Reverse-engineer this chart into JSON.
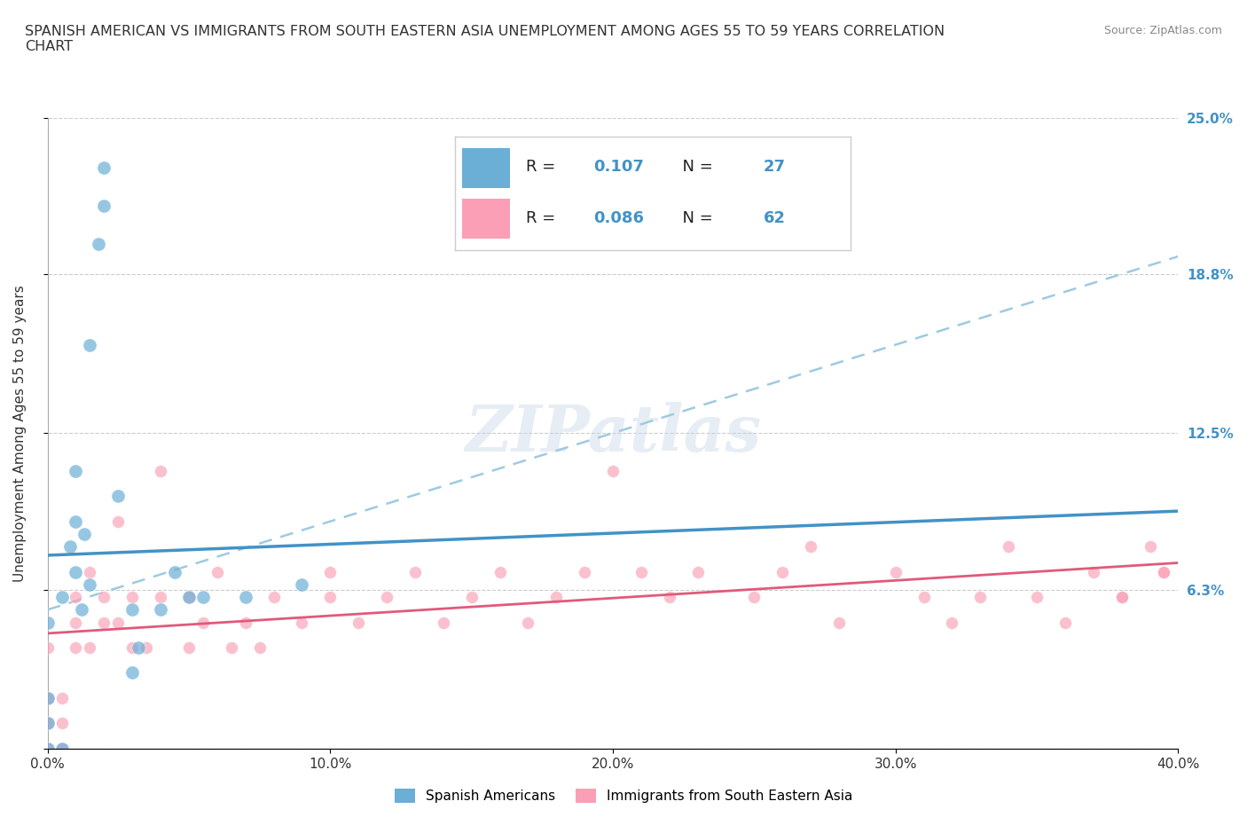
{
  "title": "SPANISH AMERICAN VS IMMIGRANTS FROM SOUTH EASTERN ASIA UNEMPLOYMENT AMONG AGES 55 TO 59 YEARS CORRELATION\nCHART",
  "source": "Source: ZipAtlas.com",
  "ylabel": "Unemployment Among Ages 55 to 59 years",
  "xlabel_ticks": [
    "0.0%",
    "10.0%",
    "20.0%",
    "30.0%",
    "40.0%"
  ],
  "xlabel_vals": [
    0.0,
    0.1,
    0.2,
    0.3,
    0.4
  ],
  "ylabel_ticks": [
    "0.0%",
    "6.3%",
    "12.5%",
    "18.8%",
    "25.0%"
  ],
  "ylabel_vals": [
    0.0,
    0.063,
    0.125,
    0.188,
    0.25
  ],
  "xlim": [
    0.0,
    0.4
  ],
  "ylim": [
    0.0,
    0.25
  ],
  "right_ytick_labels": [
    "25.0%",
    "18.8%",
    "12.5%",
    "6.3%"
  ],
  "right_ytick_vals": [
    0.25,
    0.188,
    0.125,
    0.063
  ],
  "R_blue": 0.107,
  "N_blue": 27,
  "R_pink": 0.086,
  "N_pink": 62,
  "color_blue": "#6baed6",
  "color_pink": "#fa9fb5",
  "color_blue_line": "#4292c6",
  "color_pink_line": "#e05a7a",
  "color_blue_dash": "#9ecae1",
  "watermark": "ZIPatlas",
  "legend_label_blue": "Spanish Americans",
  "legend_label_pink": "Immigrants from South Eastern Asia",
  "blue_scatter_x": [
    0.0,
    0.0,
    0.0,
    0.0,
    0.005,
    0.005,
    0.008,
    0.01,
    0.01,
    0.01,
    0.012,
    0.013,
    0.015,
    0.015,
    0.018,
    0.02,
    0.02,
    0.025,
    0.03,
    0.03,
    0.032,
    0.04,
    0.045,
    0.05,
    0.055,
    0.07,
    0.09
  ],
  "blue_scatter_y": [
    0.0,
    0.01,
    0.02,
    0.05,
    0.0,
    0.06,
    0.08,
    0.07,
    0.09,
    0.11,
    0.055,
    0.085,
    0.065,
    0.16,
    0.2,
    0.23,
    0.215,
    0.1,
    0.03,
    0.055,
    0.04,
    0.055,
    0.07,
    0.06,
    0.06,
    0.06,
    0.065
  ],
  "pink_scatter_x": [
    0.0,
    0.0,
    0.0,
    0.0,
    0.005,
    0.005,
    0.005,
    0.01,
    0.01,
    0.01,
    0.015,
    0.015,
    0.02,
    0.02,
    0.025,
    0.025,
    0.03,
    0.03,
    0.035,
    0.04,
    0.04,
    0.05,
    0.05,
    0.055,
    0.06,
    0.065,
    0.07,
    0.075,
    0.08,
    0.09,
    0.1,
    0.1,
    0.11,
    0.12,
    0.13,
    0.14,
    0.15,
    0.16,
    0.17,
    0.18,
    0.19,
    0.2,
    0.21,
    0.22,
    0.23,
    0.25,
    0.26,
    0.27,
    0.28,
    0.3,
    0.31,
    0.32,
    0.33,
    0.34,
    0.35,
    0.36,
    0.37,
    0.38,
    0.39,
    0.395,
    0.38,
    0.395
  ],
  "pink_scatter_y": [
    0.0,
    0.01,
    0.02,
    0.04,
    0.0,
    0.01,
    0.02,
    0.04,
    0.05,
    0.06,
    0.04,
    0.07,
    0.05,
    0.06,
    0.09,
    0.05,
    0.04,
    0.06,
    0.04,
    0.06,
    0.11,
    0.04,
    0.06,
    0.05,
    0.07,
    0.04,
    0.05,
    0.04,
    0.06,
    0.05,
    0.06,
    0.07,
    0.05,
    0.06,
    0.07,
    0.05,
    0.06,
    0.07,
    0.05,
    0.06,
    0.07,
    0.11,
    0.07,
    0.06,
    0.07,
    0.06,
    0.07,
    0.08,
    0.05,
    0.07,
    0.06,
    0.05,
    0.06,
    0.08,
    0.06,
    0.05,
    0.07,
    0.06,
    0.08,
    0.07,
    0.06,
    0.07
  ]
}
